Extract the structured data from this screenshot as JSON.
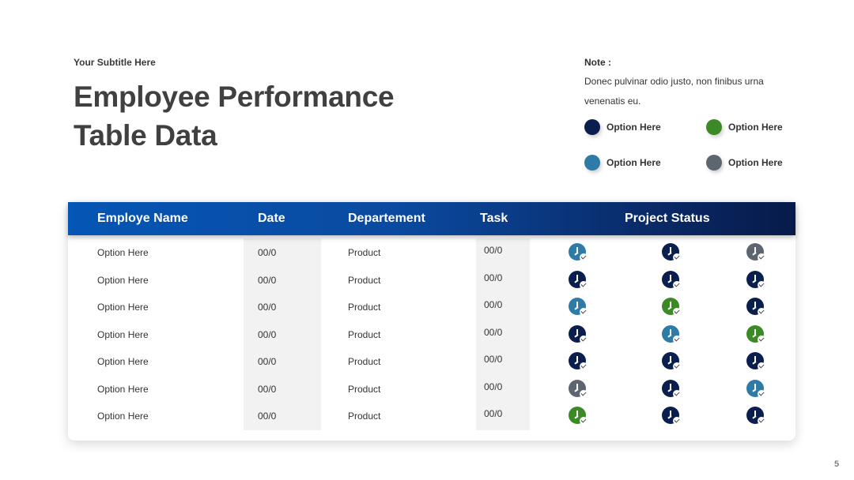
{
  "slide": {
    "subtitle": "Your Subtitle Here",
    "title": "Employee Performance Table Data",
    "page_number": "5"
  },
  "note": {
    "label": "Note :",
    "text": "Donec pulvinar odio justo, non finibus urna venenatis eu."
  },
  "colors": {
    "navy": "#0b1f4f",
    "teal": "#2d7ba6",
    "green": "#3c8a26",
    "gray": "#5d6670"
  },
  "legend": [
    {
      "label": "Option Here",
      "color": "#0b1f4f"
    },
    {
      "label": "Option Here",
      "color": "#3c8a26"
    },
    {
      "label": "Option Here",
      "color": "#2d7ba6"
    },
    {
      "label": "Option Here",
      "color": "#5d6670"
    }
  ],
  "table": {
    "headers": {
      "name": "Employe Name",
      "date": "Date",
      "department": "Departement",
      "task": "Task",
      "status": "Project Status"
    },
    "rows": [
      {
        "name": "Option Here",
        "date": "00/0",
        "department": "Product",
        "task": "00/0",
        "status": [
          "teal",
          "navy",
          "gray"
        ]
      },
      {
        "name": "Option Here",
        "date": "00/0",
        "department": "Product",
        "task": "00/0",
        "status": [
          "navy",
          "navy",
          "navy"
        ]
      },
      {
        "name": "Option Here",
        "date": "00/0",
        "department": "Product",
        "task": "00/0",
        "status": [
          "teal",
          "green",
          "navy"
        ]
      },
      {
        "name": "Option Here",
        "date": "00/0",
        "department": "Product",
        "task": "00/0",
        "status": [
          "navy",
          "teal",
          "green"
        ]
      },
      {
        "name": "Option Here",
        "date": "00/0",
        "department": "Product",
        "task": "00/0",
        "status": [
          "navy",
          "navy",
          "navy"
        ]
      },
      {
        "name": "Option Here",
        "date": "00/0",
        "department": "Product",
        "task": "00/0",
        "status": [
          "gray",
          "navy",
          "teal"
        ]
      },
      {
        "name": "Option Here",
        "date": "00/0",
        "department": "Product",
        "task": "00/0",
        "status": [
          "green",
          "navy",
          "navy"
        ]
      }
    ]
  }
}
